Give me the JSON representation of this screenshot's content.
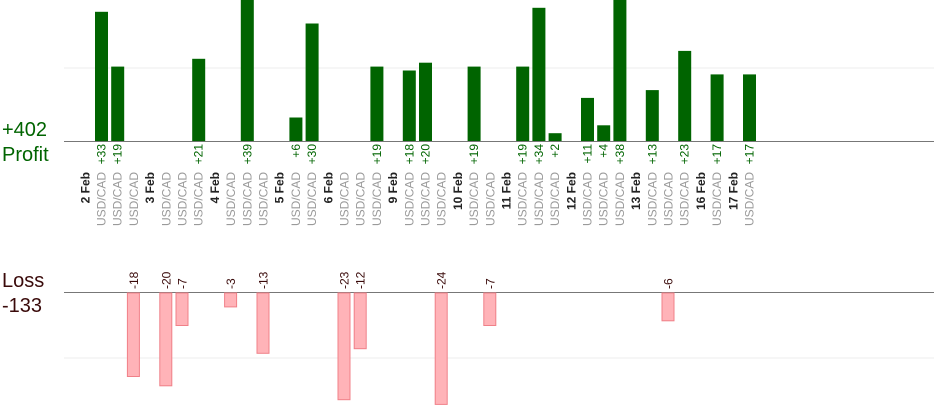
{
  "summary": {
    "profit_total": "+402",
    "profit_label": "Profit",
    "loss_label": "Loss",
    "loss_total": "-133"
  },
  "colors": {
    "profit_bar": "#006400",
    "loss_bar": "#ffb3b8",
    "loss_bar_stroke": "#f08088",
    "profit_text": "#006400",
    "loss_text": "#3a0a0a"
  },
  "chart_data": {
    "type": "bar",
    "title": "",
    "xlabel": "",
    "ylabel": "",
    "grid": true,
    "profit_ylim": [
      0,
      36
    ],
    "loss_ylim": [
      -25,
      0
    ],
    "days": [
      {
        "date": "2 Feb",
        "trades": [
          {
            "pair": "USD/CAD",
            "value": 33
          },
          {
            "pair": "USD/CAD",
            "value": 19
          },
          {
            "pair": "USD/CAD",
            "value": -18
          }
        ]
      },
      {
        "date": "3 Feb",
        "trades": [
          {
            "pair": "USD/CAD",
            "value": -20
          },
          {
            "pair": "USD/CAD",
            "value": -7
          },
          {
            "pair": "USD/CAD",
            "value": 21
          }
        ]
      },
      {
        "date": "4 Feb",
        "trades": [
          {
            "pair": "USD/CAD",
            "value": -3
          },
          {
            "pair": "USD/CAD",
            "value": 39
          },
          {
            "pair": "USD/CAD",
            "value": -13
          }
        ]
      },
      {
        "date": "5 Feb",
        "trades": [
          {
            "pair": "USD/CAD",
            "value": 6
          },
          {
            "pair": "USD/CAD",
            "value": 30
          }
        ]
      },
      {
        "date": "6 Feb",
        "trades": [
          {
            "pair": "USD/CAD",
            "value": -23
          },
          {
            "pair": "USD/CAD",
            "value": -12
          },
          {
            "pair": "USD/CAD",
            "value": 19
          }
        ]
      },
      {
        "date": "9 Feb",
        "trades": [
          {
            "pair": "USD/CAD",
            "value": 18
          },
          {
            "pair": "USD/CAD",
            "value": 20
          },
          {
            "pair": "USD/CAD",
            "value": -24
          }
        ]
      },
      {
        "date": "10 Feb",
        "trades": [
          {
            "pair": "USD/CAD",
            "value": 19
          },
          {
            "pair": "USD/CAD",
            "value": -7
          }
        ]
      },
      {
        "date": "11 Feb",
        "trades": [
          {
            "pair": "USD/CAD",
            "value": 19
          },
          {
            "pair": "USD/CAD",
            "value": 34
          },
          {
            "pair": "USD/CAD",
            "value": 2
          }
        ]
      },
      {
        "date": "12 Feb",
        "trades": [
          {
            "pair": "USD/CAD",
            "value": 11
          },
          {
            "pair": "USD/CAD",
            "value": 4
          },
          {
            "pair": "USD/CAD",
            "value": 38
          }
        ]
      },
      {
        "date": "13 Feb",
        "trades": [
          {
            "pair": "USD/CAD",
            "value": 13
          },
          {
            "pair": "USD/CAD",
            "value": -6
          },
          {
            "pair": "USD/CAD",
            "value": 23
          }
        ]
      },
      {
        "date": "16 Feb",
        "trades": [
          {
            "pair": "USD/CAD",
            "value": 17
          }
        ]
      },
      {
        "date": "17 Feb",
        "trades": [
          {
            "pair": "USD/CAD",
            "value": 17
          }
        ]
      }
    ]
  }
}
